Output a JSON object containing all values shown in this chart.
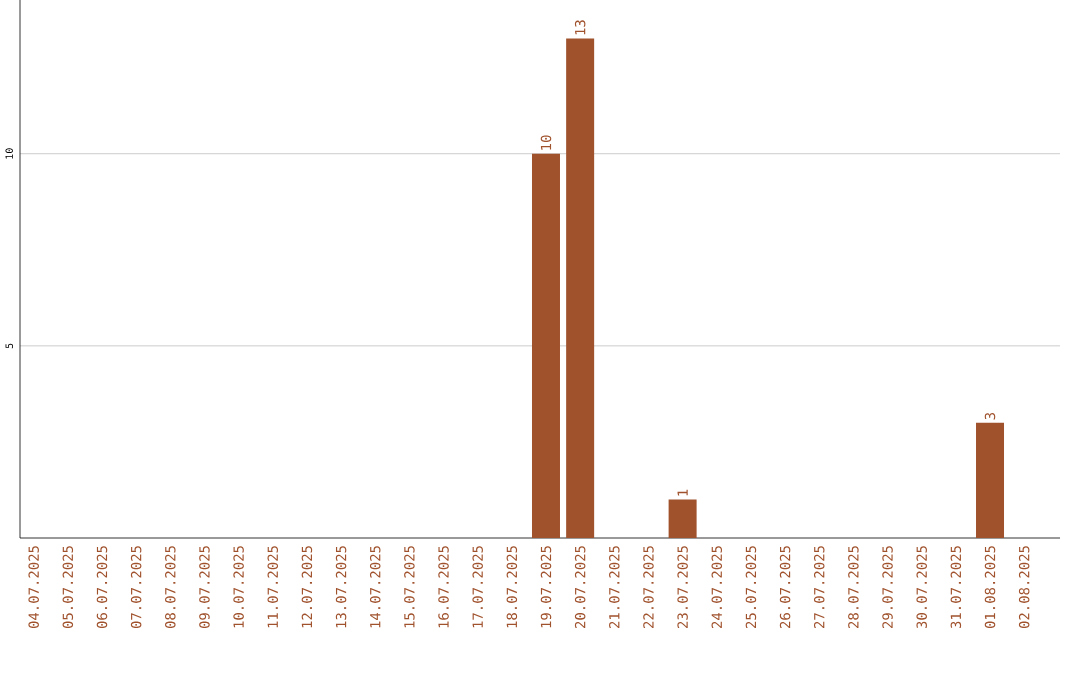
{
  "chart_data": {
    "type": "bar",
    "categories": [
      "04.07.2025",
      "05.07.2025",
      "06.07.2025",
      "07.07.2025",
      "08.07.2025",
      "09.07.2025",
      "10.07.2025",
      "11.07.2025",
      "12.07.2025",
      "13.07.2025",
      "14.07.2025",
      "15.07.2025",
      "16.07.2025",
      "17.07.2025",
      "18.07.2025",
      "19.07.2025",
      "20.07.2025",
      "21.07.2025",
      "22.07.2025",
      "23.07.2025",
      "24.07.2025",
      "25.07.2025",
      "26.07.2025",
      "27.07.2025",
      "28.07.2025",
      "29.07.2025",
      "30.07.2025",
      "31.07.2025",
      "01.08.2025",
      "02.08.2025"
    ],
    "values": [
      0,
      0,
      0,
      0,
      0,
      0,
      0,
      0,
      0,
      0,
      0,
      0,
      0,
      0,
      0,
      10,
      13,
      0,
      0,
      1,
      0,
      0,
      0,
      0,
      0,
      0,
      0,
      0,
      3,
      0
    ],
    "value_labels": [
      null,
      null,
      null,
      null,
      null,
      null,
      null,
      null,
      null,
      null,
      null,
      null,
      null,
      null,
      null,
      "10",
      "13",
      null,
      null,
      "1",
      null,
      null,
      null,
      null,
      null,
      null,
      null,
      null,
      "3",
      null
    ],
    "color": "#a0522d",
    "ylim": [
      0,
      14
    ],
    "yticks": [
      5,
      10
    ],
    "grid": "y"
  }
}
